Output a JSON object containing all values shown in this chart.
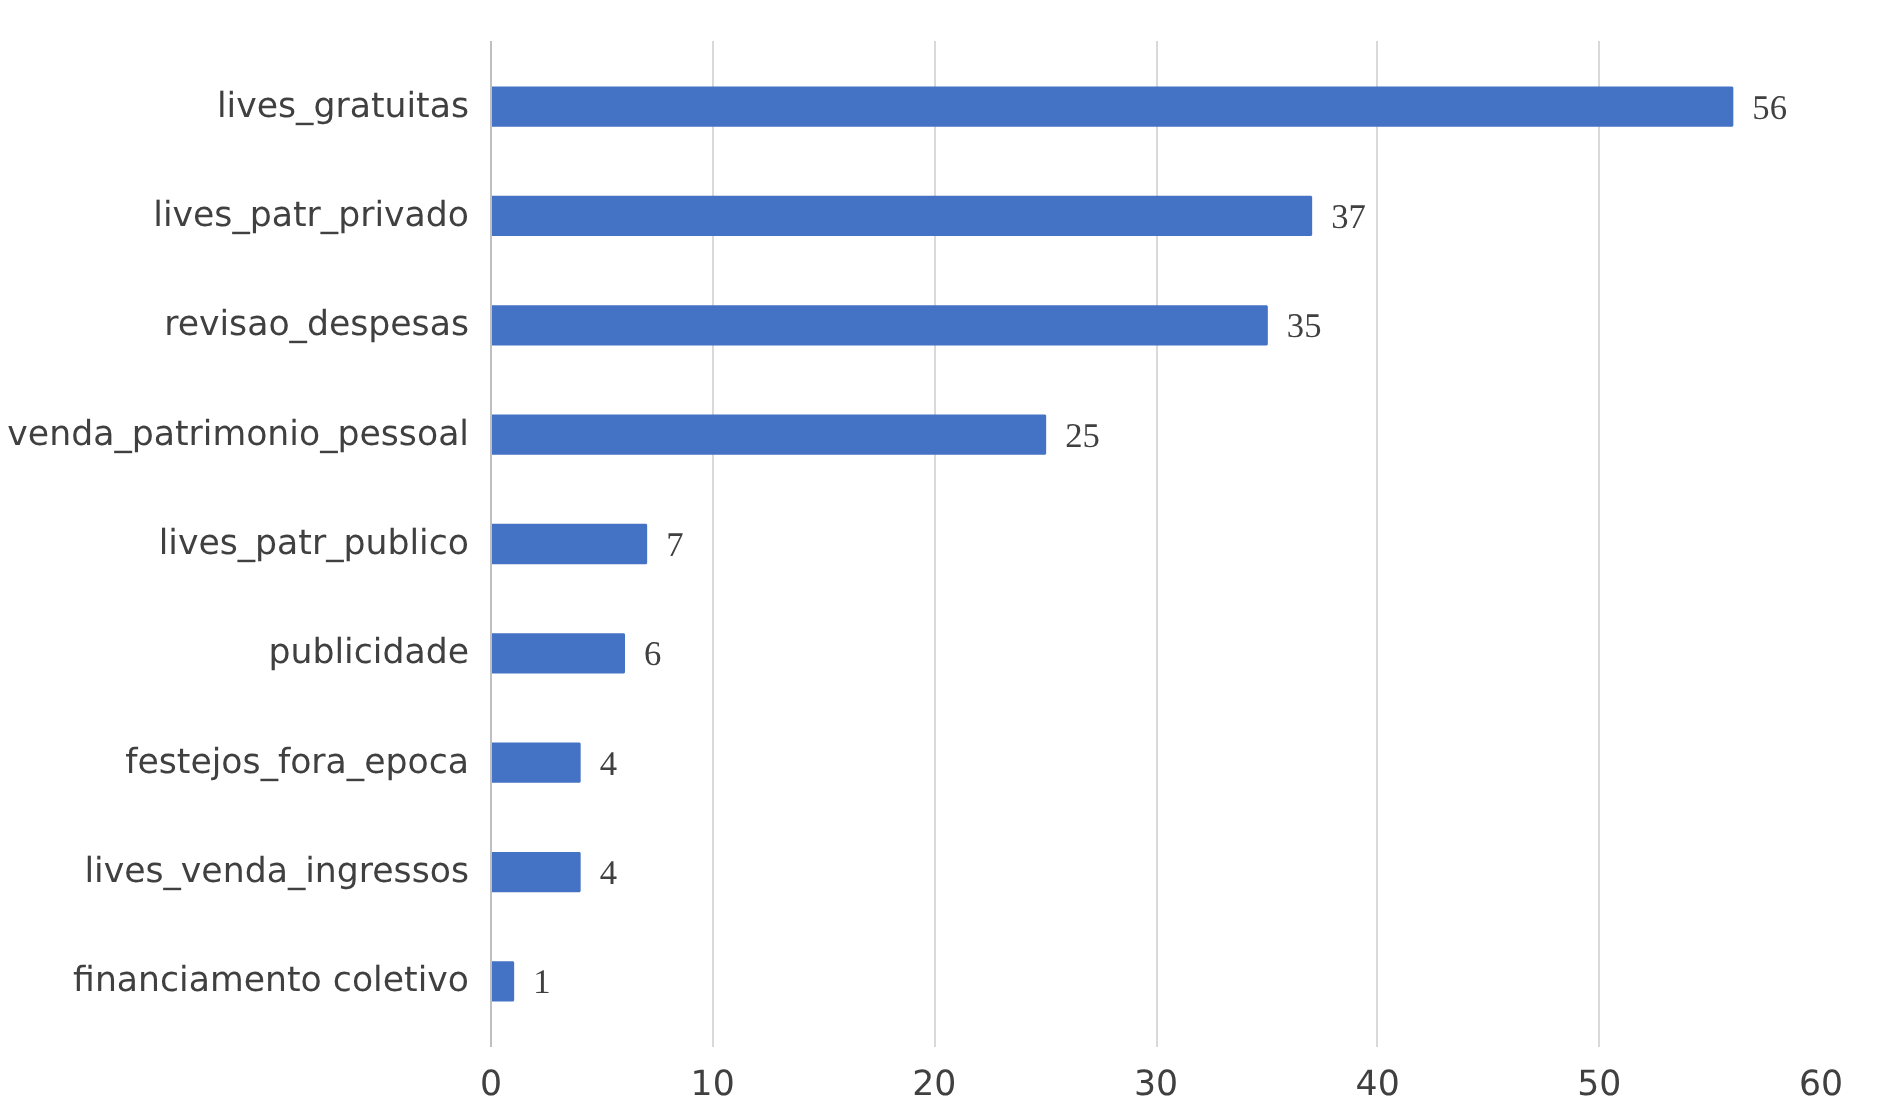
{
  "chart_data": {
    "type": "bar",
    "orientation": "horizontal",
    "categories": [
      "lives_gratuitas",
      "lives_patr_privado",
      "revisao_despesas",
      "venda_patrimonio_pessoal",
      "lives_patr_publico",
      "publicidade",
      "festejos_fora_epoca",
      "lives_venda_ingressos",
      "financiamento coletivo"
    ],
    "values": [
      56,
      37,
      35,
      25,
      7,
      6,
      4,
      4,
      1
    ],
    "color": "#4472c4",
    "xlim": [
      0,
      60
    ],
    "xticks": [
      0,
      10,
      20,
      30,
      40,
      50,
      60
    ],
    "grid": "x",
    "data_labels": true
  }
}
